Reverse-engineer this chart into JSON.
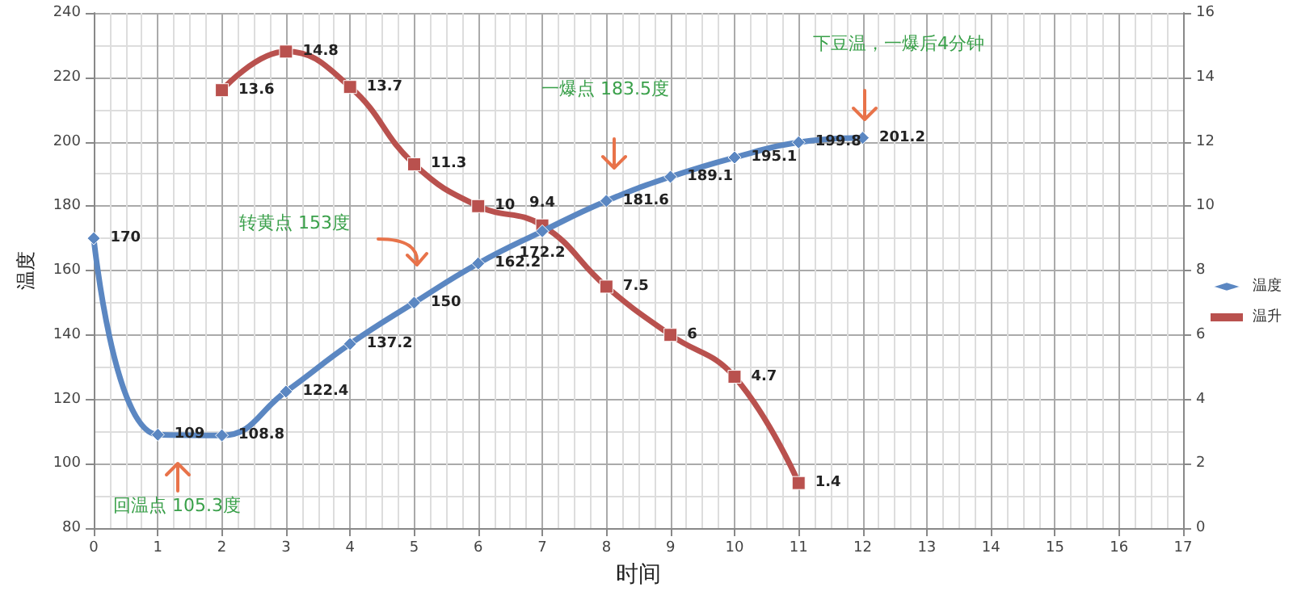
{
  "chart_data": {
    "type": "line",
    "xlabel": "时间",
    "ylabel": "温度",
    "xlim": [
      0,
      17
    ],
    "xticks": [
      0,
      1,
      2,
      3,
      4,
      5,
      6,
      7,
      8,
      9,
      10,
      11,
      12,
      13,
      14,
      15,
      16,
      17
    ],
    "ylim": [
      80,
      240
    ],
    "yticks": [
      80,
      100,
      120,
      140,
      160,
      180,
      200,
      220,
      240
    ],
    "y2lim": [
      0,
      16
    ],
    "y2ticks": [
      0,
      2,
      4,
      6,
      8,
      10,
      12,
      14,
      16
    ],
    "grid": true,
    "legend": "right",
    "data_labels": true,
    "line_style": "solid",
    "series": [
      {
        "name": "温度",
        "color": "#5b87c2",
        "marker": "diamond",
        "x": [
          0,
          1,
          2,
          3,
          4,
          5,
          6,
          7,
          8,
          9,
          10,
          11,
          12
        ],
        "values": [
          170,
          109,
          108.8,
          122.4,
          137.2,
          150,
          162.2,
          172.2,
          181.6,
          189.1,
          195.1,
          199.8,
          201.2
        ]
      },
      {
        "name": "温升",
        "color": "#b9514e",
        "marker": "square",
        "axis": "y2",
        "x": [
          2,
          3,
          4,
          5,
          6,
          7,
          8,
          9,
          10,
          11
        ],
        "values": [
          13.6,
          14.8,
          13.7,
          11.3,
          10,
          9.4,
          7.5,
          6,
          4.7,
          1.4
        ]
      }
    ],
    "annotations": [
      "回温点 105.3度",
      "转黄点 153度",
      "一爆点 183.5度",
      "下豆温，一爆后4分钟"
    ]
  }
}
